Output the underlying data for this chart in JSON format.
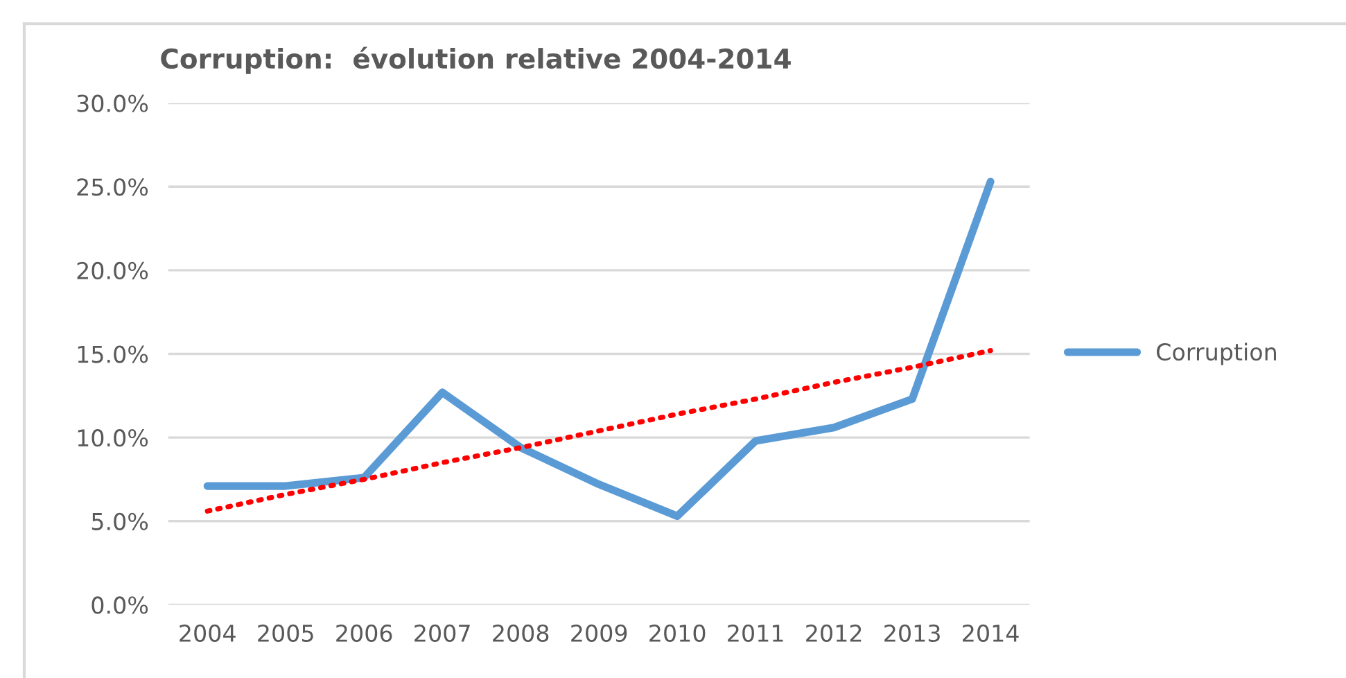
{
  "chart_data": {
    "type": "line",
    "title": "Corruption:  évolution relative 2004-2014",
    "categories": [
      "2004",
      "2005",
      "2006",
      "2007",
      "2008",
      "2009",
      "2010",
      "2011",
      "2012",
      "2013",
      "2014"
    ],
    "series": [
      {
        "name": "Corruption",
        "color": "#5b9bd5",
        "values": [
          7.1,
          7.1,
          7.6,
          12.7,
          9.4,
          7.2,
          5.3,
          9.8,
          10.6,
          12.3,
          25.3
        ]
      },
      {
        "type": "line",
        "color": "#ff0000",
        "line_style": "dotted",
        "values": [
          5.6,
          6.6,
          7.5,
          8.5,
          9.4,
          10.4,
          11.4,
          12.3,
          13.3,
          14.2,
          15.2
        ]
      }
    ],
    "ylim": [
      0,
      30
    ],
    "yticks": [
      {
        "value": 0,
        "label": "0.0%"
      },
      {
        "value": 5,
        "label": "5.0%"
      },
      {
        "value": 10,
        "label": "10.0%"
      },
      {
        "value": 15,
        "label": "15.0%"
      },
      {
        "value": 20,
        "label": "20.0%"
      },
      {
        "value": 25,
        "label": "25.0%"
      },
      {
        "value": 30,
        "label": "30.0%"
      }
    ],
    "grid": "y",
    "legend": "right",
    "marker": "none",
    "line_style": "solid"
  }
}
